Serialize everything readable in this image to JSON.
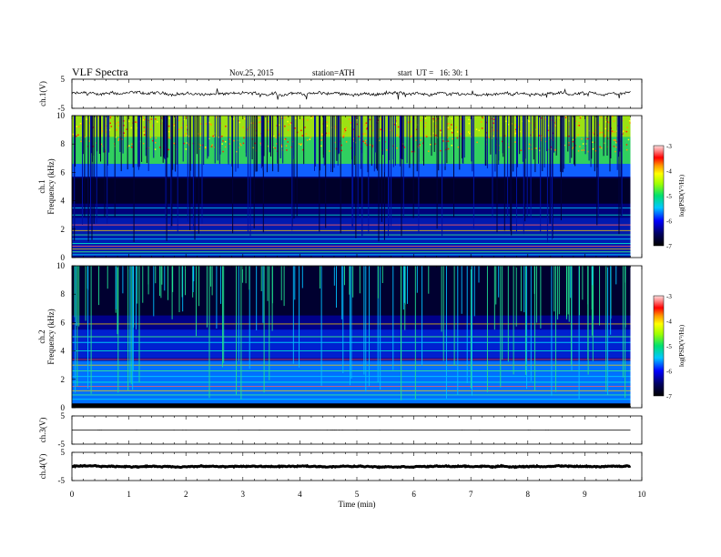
{
  "header": {
    "title": "VLF Spectra",
    "date": "Nov.25, 2015",
    "station": "station=ATH",
    "start": "start  UT =   16: 30: 1"
  },
  "chart_data": [
    {
      "type": "line",
      "panel": "ch1-waveform",
      "ylabel": "ch.1(V)",
      "ylim": [
        -5,
        5
      ],
      "yticks": [
        "5",
        "-5"
      ],
      "xlim": [
        0,
        10
      ],
      "trace": {
        "mean": 0,
        "amplitude": 0.8,
        "end_min": 9.8
      }
    },
    {
      "type": "heatmap",
      "panel": "ch1-spectrogram",
      "ylabel": "ch.1 Frequency  (kHz)",
      "ylim": [
        0,
        10
      ],
      "yticks": [
        "0",
        "2",
        "4",
        "6",
        "8",
        "10"
      ],
      "xlim": [
        0,
        10
      ],
      "active_band_khz": [
        6,
        10
      ],
      "quiet_band_khz": [
        2,
        6
      ],
      "lines_khz": [
        0.2,
        0.4,
        0.6,
        0.8,
        1.0,
        1.3,
        1.6,
        1.9,
        2.3,
        3.0,
        3.5
      ],
      "colorbar": {
        "label": "log(PSD(V²/Hz)",
        "range": [
          -7,
          -3
        ],
        "ticks": [
          "-3",
          "-4",
          "-5",
          "-6",
          "-7"
        ]
      }
    },
    {
      "type": "heatmap",
      "panel": "ch2-spectrogram",
      "ylabel": "ch.2 Frequency  (kHz)",
      "ylim": [
        0,
        10
      ],
      "yticks": [
        "0",
        "2",
        "4",
        "6",
        "8",
        "10"
      ],
      "xlim": [
        0,
        10
      ],
      "lines_khz": [
        0.6,
        0.9,
        1.2,
        1.5,
        1.8,
        2.2,
        2.6,
        3.0,
        3.4,
        4.0,
        4.6,
        5.0,
        5.9
      ],
      "colorbar": {
        "label": "log(PSD(V²/Hz)",
        "range": [
          -7,
          -3
        ],
        "ticks": [
          "-3",
          "-4",
          "-5",
          "-6",
          "-7"
        ]
      }
    },
    {
      "type": "line",
      "panel": "ch3-waveform",
      "ylabel": "ch.3(V)",
      "ylim": [
        -5,
        5
      ],
      "yticks": [
        "5",
        "-5"
      ],
      "xlim": [
        0,
        10
      ],
      "trace": {
        "mean": 0,
        "amplitude": 0.02,
        "end_min": 9.8
      }
    },
    {
      "type": "line",
      "panel": "ch4-waveform",
      "ylabel": "ch.4(V)",
      "ylim": [
        -5,
        5
      ],
      "yticks": [
        "5",
        "-5"
      ],
      "xlim": [
        0,
        10
      ],
      "xlabel": "Time  (min)",
      "xticks": [
        "0",
        "1",
        "2",
        "3",
        "4",
        "5",
        "6",
        "7",
        "8",
        "9",
        "10"
      ],
      "trace": {
        "mean": 0,
        "amplitude": 0.25,
        "end_min": 9.8
      }
    }
  ]
}
